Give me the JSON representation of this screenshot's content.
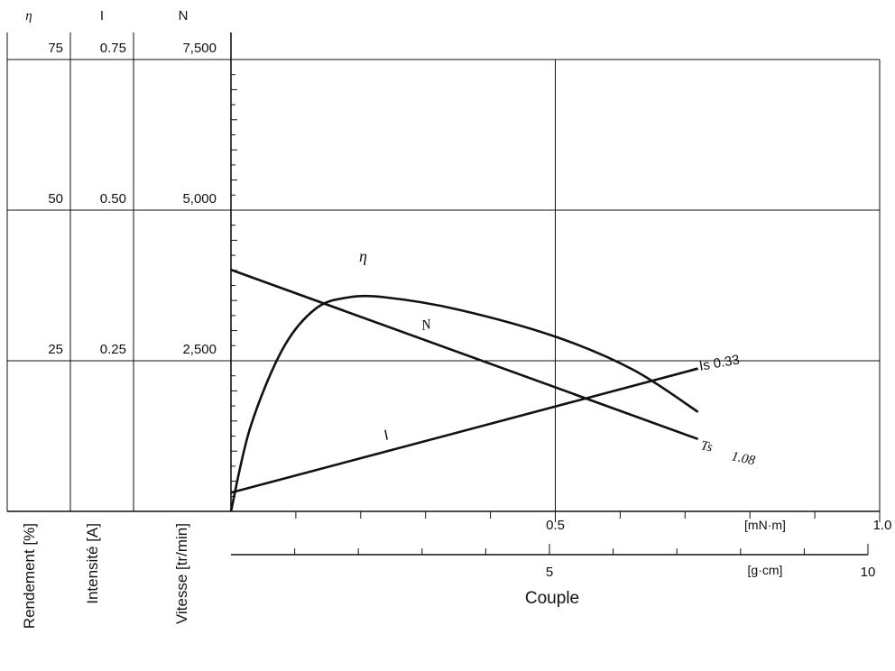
{
  "chart_data": {
    "type": "line",
    "xlabel": "Couple",
    "x_axis_primary": {
      "unit": "[mN·m]",
      "range": [
        0,
        1.0
      ],
      "tick_labels": [
        "0.5",
        "1.0"
      ]
    },
    "x_axis_secondary": {
      "unit": "[g·cm]",
      "range": [
        0,
        10
      ],
      "tick_labels": [
        "5",
        "10"
      ]
    },
    "left_axes": [
      {
        "symbol": "η",
        "label": "Rendement [%]",
        "tick_labels": [
          "25",
          "50",
          "75"
        ]
      },
      {
        "symbol": "I",
        "label": "Intensité [A]",
        "tick_labels": [
          "0.25",
          "0.50",
          "0.75"
        ]
      },
      {
        "symbol": "N",
        "label": "Vitesse [tr/min]",
        "tick_labels": [
          "2,500",
          "5,000",
          "7,500"
        ]
      }
    ],
    "series": [
      {
        "name": "η",
        "axis": "Rendement [%]",
        "points": [
          [
            0,
            0
          ],
          [
            0.03,
            14
          ],
          [
            0.08,
            27
          ],
          [
            0.13,
            33.6
          ],
          [
            0.18,
            35.5
          ],
          [
            0.24,
            35.5
          ],
          [
            0.35,
            33.5
          ],
          [
            0.5,
            29
          ],
          [
            0.62,
            23.5
          ],
          [
            0.72,
            16.5
          ]
        ]
      },
      {
        "name": "N",
        "axis": "Vitesse [tr/min]",
        "points": [
          [
            0,
            4010
          ],
          [
            0.72,
            1200
          ]
        ]
      },
      {
        "name": "I",
        "axis": "Intensité [A]",
        "points": [
          [
            0,
            0.031
          ],
          [
            0.72,
            0.237
          ]
        ]
      }
    ],
    "annotations": [
      {
        "text": "Is 0.33"
      },
      {
        "text": "Ts"
      },
      {
        "text": "1.08"
      }
    ],
    "grid": true
  }
}
